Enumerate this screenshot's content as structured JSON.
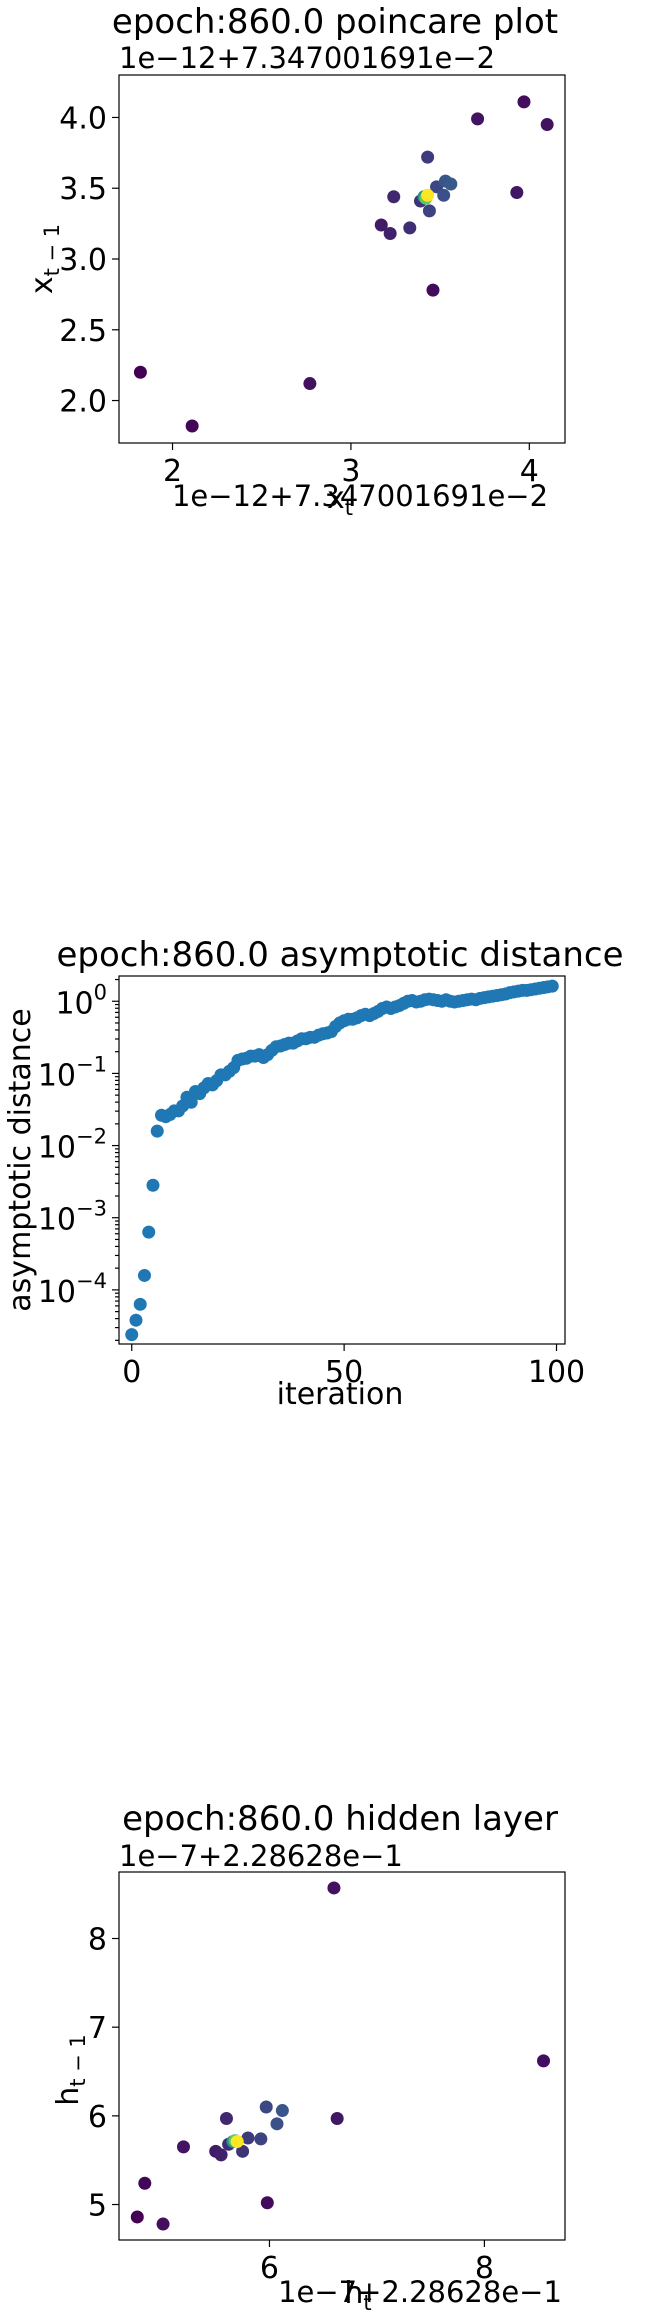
{
  "charts": [
    {
      "type": "scatter",
      "title": "epoch:860.0 poincare plot",
      "xlabel": "x_t",
      "ylabel": "x_{t-1}",
      "x_offset_label": "1e−12+7.347001691e−2",
      "y_offset_label": "1e−12+7.347001691e−2",
      "xlim": [
        1.7,
        4.2
      ],
      "ylim": [
        1.7,
        4.3
      ],
      "xticks": [
        "2",
        "3",
        "4"
      ],
      "yticks": [
        "2.0",
        "2.5",
        "3.0",
        "3.5",
        "4.0"
      ],
      "colormap": "viridis",
      "points": [
        {
          "x": 1.82,
          "y": 2.2,
          "c": 0.0
        },
        {
          "x": 2.11,
          "y": 1.82,
          "c": 0.02
        },
        {
          "x": 2.77,
          "y": 2.12,
          "c": 0.05
        },
        {
          "x": 3.17,
          "y": 3.24,
          "c": 0.08
        },
        {
          "x": 3.22,
          "y": 3.18,
          "c": 0.1
        },
        {
          "x": 3.24,
          "y": 3.44,
          "c": 0.12
        },
        {
          "x": 3.33,
          "y": 3.22,
          "c": 0.14
        },
        {
          "x": 3.39,
          "y": 3.41,
          "c": 0.16
        },
        {
          "x": 3.43,
          "y": 3.72,
          "c": 0.18
        },
        {
          "x": 3.44,
          "y": 3.34,
          "c": 0.2
        },
        {
          "x": 3.46,
          "y": 2.78,
          "c": 0.03
        },
        {
          "x": 3.48,
          "y": 3.51,
          "c": 0.22
        },
        {
          "x": 3.52,
          "y": 3.45,
          "c": 0.24
        },
        {
          "x": 3.53,
          "y": 3.55,
          "c": 0.26
        },
        {
          "x": 3.56,
          "y": 3.53,
          "c": 0.28
        },
        {
          "x": 3.71,
          "y": 3.99,
          "c": 0.06
        },
        {
          "x": 3.93,
          "y": 3.47,
          "c": 0.07
        },
        {
          "x": 3.97,
          "y": 4.11,
          "c": 0.04
        },
        {
          "x": 4.1,
          "y": 3.95,
          "c": 0.05
        },
        {
          "x": 3.41,
          "y": 3.44,
          "c": 0.5
        },
        {
          "x": 3.42,
          "y": 3.43,
          "c": 0.75
        },
        {
          "x": 3.43,
          "y": 3.45,
          "c": 1.0
        }
      ]
    },
    {
      "type": "scatter",
      "title": "epoch:860.0 asymptotic distance",
      "xlabel": "iteration",
      "ylabel": "asymptotic distance",
      "yscale": "log",
      "xlim": [
        -3,
        102
      ],
      "ylim_log10": [
        -4.75,
        0.35
      ],
      "xticks": [
        "0",
        "50",
        "100"
      ],
      "xtick_values": [
        0,
        50,
        100
      ],
      "yticks": [
        {
          "base": "10",
          "exp": "0",
          "value": 0
        },
        {
          "base": "10",
          "exp": "−1",
          "value": -1
        },
        {
          "base": "10",
          "exp": "−2",
          "value": -2
        },
        {
          "base": "10",
          "exp": "−3",
          "value": -3
        },
        {
          "base": "10",
          "exp": "−4",
          "value": -4
        }
      ],
      "color": "#1f77b4",
      "log10_values": [
        -4.62,
        -4.42,
        -4.2,
        -3.8,
        -3.2,
        -2.55,
        -1.8,
        -1.58,
        -1.6,
        -1.57,
        -1.52,
        -1.52,
        -1.45,
        -1.33,
        -1.4,
        -1.25,
        -1.28,
        -1.2,
        -1.14,
        -1.16,
        -1.1,
        -1.02,
        -1.02,
        -0.97,
        -0.92,
        -0.82,
        -0.8,
        -0.79,
        -0.76,
        -0.76,
        -0.74,
        -0.78,
        -0.74,
        -0.68,
        -0.63,
        -0.62,
        -0.6,
        -0.58,
        -0.58,
        -0.55,
        -0.52,
        -0.52,
        -0.5,
        -0.5,
        -0.47,
        -0.45,
        -0.44,
        -0.42,
        -0.35,
        -0.3,
        -0.27,
        -0.25,
        -0.25,
        -0.23,
        -0.2,
        -0.18,
        -0.2,
        -0.17,
        -0.14,
        -0.1,
        -0.08,
        -0.1,
        -0.08,
        -0.06,
        -0.03,
        0.0,
        0.01,
        -0.01,
        0.0,
        0.02,
        0.03,
        0.02,
        0.01,
        0.0,
        0.02,
        0.0,
        -0.01,
        0.0,
        0.01,
        0.02,
        0.03,
        0.02,
        0.04,
        0.05,
        0.06,
        0.07,
        0.08,
        0.09,
        0.1,
        0.12,
        0.13,
        0.14,
        0.15,
        0.15,
        0.16,
        0.17,
        0.18,
        0.19,
        0.2,
        0.21
      ]
    },
    {
      "type": "scatter",
      "title": "epoch:860.0 hidden layer",
      "xlabel": "h_t",
      "ylabel": "h_{t-1}",
      "x_offset_label": "1e−7+2.28628e−1",
      "y_offset_label": "1e−7+2.28628e−1",
      "xlim": [
        4.6,
        8.75
      ],
      "ylim": [
        4.6,
        8.75
      ],
      "xticks": [
        "6",
        "8"
      ],
      "xtick_values": [
        6,
        8
      ],
      "yticks": [
        "5",
        "6",
        "7",
        "8"
      ],
      "ytick_values": [
        5,
        6,
        7,
        8
      ],
      "colormap": "viridis",
      "points": [
        {
          "x": 4.77,
          "y": 4.86,
          "c": 0.0
        },
        {
          "x": 4.84,
          "y": 5.24,
          "c": 0.02
        },
        {
          "x": 5.01,
          "y": 4.78,
          "c": 0.04
        },
        {
          "x": 5.2,
          "y": 5.65,
          "c": 0.06
        },
        {
          "x": 5.5,
          "y": 5.6,
          "c": 0.08
        },
        {
          "x": 5.55,
          "y": 5.56,
          "c": 0.1
        },
        {
          "x": 5.6,
          "y": 5.97,
          "c": 0.12
        },
        {
          "x": 5.62,
          "y": 5.68,
          "c": 0.14
        },
        {
          "x": 5.75,
          "y": 5.6,
          "c": 0.16
        },
        {
          "x": 5.8,
          "y": 5.75,
          "c": 0.18
        },
        {
          "x": 5.92,
          "y": 5.74,
          "c": 0.2
        },
        {
          "x": 5.97,
          "y": 6.1,
          "c": 0.22
        },
        {
          "x": 5.98,
          "y": 5.02,
          "c": 0.03
        },
        {
          "x": 6.07,
          "y": 5.91,
          "c": 0.24
        },
        {
          "x": 6.12,
          "y": 6.06,
          "c": 0.26
        },
        {
          "x": 6.6,
          "y": 8.57,
          "c": 0.05
        },
        {
          "x": 6.63,
          "y": 5.97,
          "c": 0.07
        },
        {
          "x": 8.55,
          "y": 6.62,
          "c": 0.04
        },
        {
          "x": 5.66,
          "y": 5.71,
          "c": 0.5
        },
        {
          "x": 5.68,
          "y": 5.72,
          "c": 0.75
        },
        {
          "x": 5.7,
          "y": 5.71,
          "c": 1.0
        }
      ]
    }
  ]
}
